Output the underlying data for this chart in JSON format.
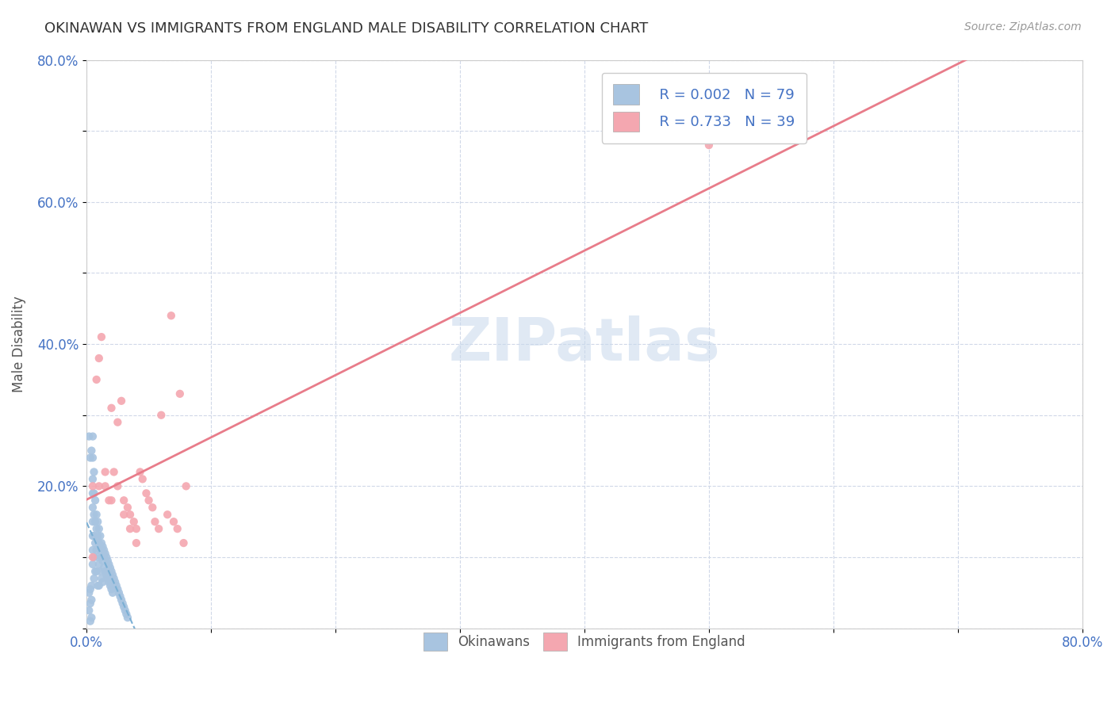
{
  "title": "OKINAWAN VS IMMIGRANTS FROM ENGLAND MALE DISABILITY CORRELATION CHART",
  "source": "Source: ZipAtlas.com",
  "ylabel": "Male Disability",
  "xlim": [
    0.0,
    0.8
  ],
  "ylim": [
    0.0,
    0.8
  ],
  "xtick_vals": [
    0.0,
    0.1,
    0.2,
    0.3,
    0.4,
    0.5,
    0.6,
    0.7,
    0.8
  ],
  "xtick_labels": [
    "0.0%",
    "",
    "",
    "",
    "",
    "",
    "",
    "",
    "80.0%"
  ],
  "ytick_vals": [
    0.0,
    0.1,
    0.2,
    0.3,
    0.4,
    0.5,
    0.6,
    0.7,
    0.8
  ],
  "ytick_labels": [
    "",
    "",
    "20.0%",
    "",
    "40.0%",
    "",
    "60.0%",
    "",
    "80.0%"
  ],
  "legend_r1": "R = 0.002",
  "legend_n1": "N = 79",
  "legend_r2": "R = 0.733",
  "legend_n2": "N = 39",
  "color_okinawan": "#a8c4e0",
  "color_england": "#f4a7b0",
  "trendline_okinawan": "#7bafd4",
  "trendline_england": "#e87c8a",
  "background_color": "#ffffff",
  "grid_color": "#d0d8e8",
  "watermark": "ZIPatlas",
  "okinawan_x": [
    0.002,
    0.003,
    0.003,
    0.003,
    0.003,
    0.004,
    0.004,
    0.004,
    0.004,
    0.005,
    0.005,
    0.005,
    0.005,
    0.005,
    0.005,
    0.005,
    0.005,
    0.005,
    0.006,
    0.006,
    0.006,
    0.006,
    0.006,
    0.006,
    0.007,
    0.007,
    0.007,
    0.007,
    0.008,
    0.008,
    0.008,
    0.008,
    0.009,
    0.009,
    0.009,
    0.009,
    0.01,
    0.01,
    0.01,
    0.01,
    0.011,
    0.011,
    0.011,
    0.012,
    0.012,
    0.012,
    0.013,
    0.013,
    0.013,
    0.014,
    0.014,
    0.015,
    0.015,
    0.016,
    0.016,
    0.017,
    0.017,
    0.018,
    0.018,
    0.019,
    0.019,
    0.02,
    0.02,
    0.021,
    0.021,
    0.022,
    0.023,
    0.024,
    0.025,
    0.026,
    0.027,
    0.028,
    0.029,
    0.03,
    0.031,
    0.032,
    0.033,
    0.002,
    0.002
  ],
  "okinawan_y": [
    0.27,
    0.24,
    0.055,
    0.035,
    0.01,
    0.25,
    0.06,
    0.04,
    0.015,
    0.27,
    0.24,
    0.21,
    0.19,
    0.17,
    0.15,
    0.13,
    0.11,
    0.09,
    0.22,
    0.19,
    0.16,
    0.13,
    0.1,
    0.07,
    0.18,
    0.15,
    0.12,
    0.08,
    0.16,
    0.14,
    0.11,
    0.08,
    0.15,
    0.13,
    0.1,
    0.06,
    0.14,
    0.12,
    0.09,
    0.06,
    0.13,
    0.11,
    0.08,
    0.12,
    0.1,
    0.07,
    0.115,
    0.095,
    0.065,
    0.11,
    0.085,
    0.105,
    0.08,
    0.1,
    0.075,
    0.095,
    0.07,
    0.09,
    0.065,
    0.085,
    0.06,
    0.08,
    0.055,
    0.075,
    0.05,
    0.07,
    0.065,
    0.06,
    0.055,
    0.05,
    0.045,
    0.04,
    0.035,
    0.03,
    0.025,
    0.02,
    0.015,
    0.05,
    0.025
  ],
  "england_x": [
    0.005,
    0.008,
    0.01,
    0.012,
    0.015,
    0.018,
    0.02,
    0.022,
    0.025,
    0.028,
    0.03,
    0.033,
    0.035,
    0.038,
    0.04,
    0.043,
    0.045,
    0.048,
    0.05,
    0.053,
    0.055,
    0.058,
    0.06,
    0.065,
    0.068,
    0.07,
    0.073,
    0.075,
    0.078,
    0.08,
    0.01,
    0.015,
    0.02,
    0.025,
    0.03,
    0.035,
    0.04,
    0.5,
    0.005
  ],
  "england_y": [
    0.2,
    0.35,
    0.38,
    0.41,
    0.2,
    0.18,
    0.31,
    0.22,
    0.29,
    0.32,
    0.18,
    0.17,
    0.16,
    0.15,
    0.14,
    0.22,
    0.21,
    0.19,
    0.18,
    0.17,
    0.15,
    0.14,
    0.3,
    0.16,
    0.44,
    0.15,
    0.14,
    0.33,
    0.12,
    0.2,
    0.2,
    0.22,
    0.18,
    0.2,
    0.16,
    0.14,
    0.12,
    0.68,
    0.1
  ]
}
